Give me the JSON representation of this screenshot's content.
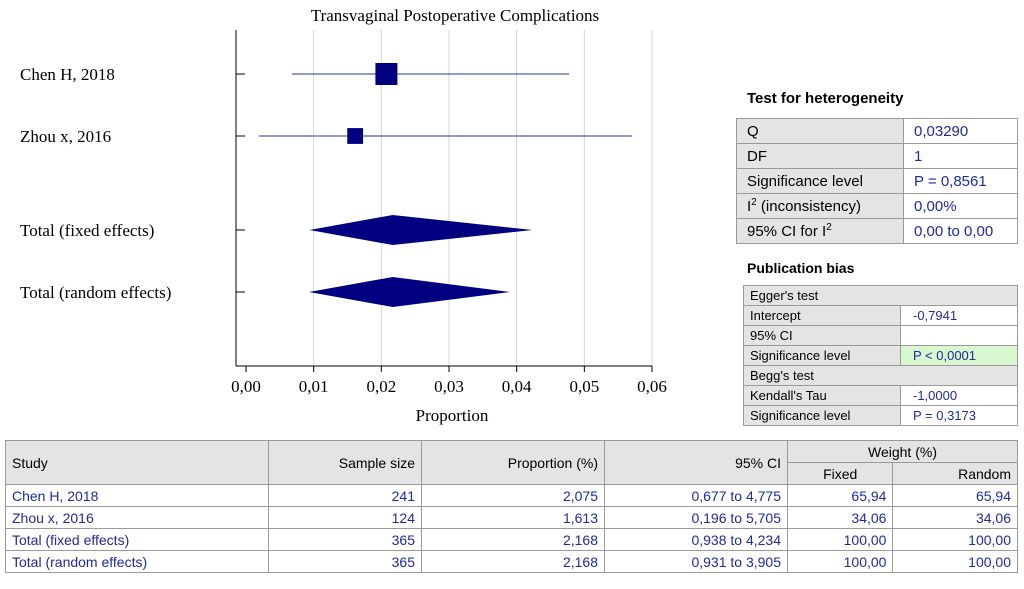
{
  "chart_data": {
    "type": "forest",
    "title": "Transvaginal Postoperative Complications",
    "xlabel": "Proportion",
    "xlim": [
      0,
      0.06
    ],
    "xticks": [
      "0,00",
      "0,01",
      "0,02",
      "0,03",
      "0,04",
      "0,05",
      "0,06"
    ],
    "grid": true,
    "rows": [
      {
        "label": "Chen H, 2018",
        "kind": "study",
        "estimate": 0.02075,
        "ci": [
          0.00677,
          0.04775
        ],
        "weight": 65.94
      },
      {
        "label": "Zhou x, 2016",
        "kind": "study",
        "estimate": 0.01613,
        "ci": [
          0.00196,
          0.05705
        ],
        "weight": 34.06
      },
      {
        "label": "Total (fixed effects)",
        "kind": "pooled",
        "estimate": 0.02168,
        "ci": [
          0.00938,
          0.04234
        ]
      },
      {
        "label": "Total (random effects)",
        "kind": "pooled",
        "estimate": 0.02168,
        "ci": [
          0.00931,
          0.03905
        ]
      }
    ]
  },
  "heterogeneity": {
    "title": "Test for heterogeneity",
    "rows": [
      {
        "key": "Q",
        "value": "0,03290"
      },
      {
        "key": "DF",
        "value": "1"
      },
      {
        "key": "Significance level",
        "value": "P = 0,8561"
      },
      {
        "key": "I",
        "sup": "2",
        "key_suffix": " (inconsistency)",
        "value": "0,00%"
      },
      {
        "key": "95% CI for I",
        "sup": "2",
        "key_suffix": "",
        "value": "0,00 to 0,00"
      }
    ]
  },
  "publication_bias": {
    "title": "Publication bias",
    "egger_header": "Egger's test",
    "intercept_label": "Intercept",
    "intercept_value": "-0,7941",
    "ci_label": "95% CI",
    "ci_value": "",
    "egger_sig_label": "Significance level",
    "egger_sig_value": "P < 0,0001",
    "begg_header": "Begg's test",
    "tau_label": "Kendall's Tau",
    "tau_value": "-1,0000",
    "begg_sig_label": "Significance level",
    "begg_sig_value": "P = 0,3173"
  },
  "study_table": {
    "headers": {
      "study": "Study",
      "sample_size": "Sample size",
      "proportion": "Proportion (%)",
      "ci": "95% CI",
      "weight": "Weight (%)",
      "fixed": "Fixed",
      "random": "Random"
    },
    "rows": [
      {
        "study": "Chen H, 2018",
        "n": "241",
        "prop": "2,075",
        "ci": "0,677 to 4,775",
        "fixed": "65,94",
        "random": "65,94"
      },
      {
        "study": "Zhou x, 2016",
        "n": "124",
        "prop": "1,613",
        "ci": "0,196 to 5,705",
        "fixed": "34,06",
        "random": "34,06"
      },
      {
        "study": "Total (fixed effects)",
        "n": "365",
        "prop": "2,168",
        "ci": "0,938 to 4,234",
        "fixed": "100,00",
        "random": "100,00"
      },
      {
        "study": "Total (random effects)",
        "n": "365",
        "prop": "2,168",
        "ci": "0,931 to 3,905",
        "fixed": "100,00",
        "random": "100,00"
      }
    ]
  }
}
